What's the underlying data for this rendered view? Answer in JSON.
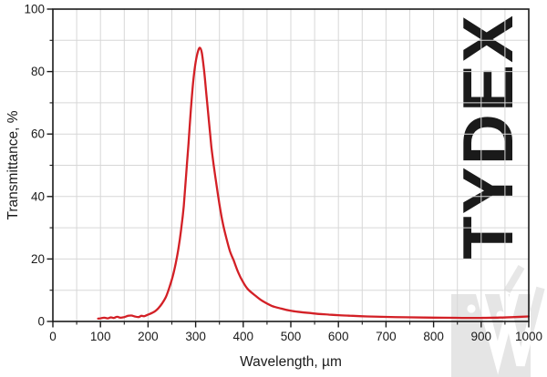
{
  "watermark": {
    "text": "TYDEX"
  },
  "colors": {
    "curve": "#d32026",
    "grid": "#d7d7d7",
    "axis": "#1a1a1a",
    "watermark": "#dcdcdc",
    "logo_block": "#e5e5e5",
    "logo_mark": "#ffffff",
    "logo_mark_faint": "#e7e7e7"
  },
  "chart_data": {
    "type": "line",
    "title": "",
    "xlabel": "Wavelength, µm",
    "ylabel": "Transmittance, %",
    "xlim": [
      0,
      1000
    ],
    "ylim": [
      0,
      100
    ],
    "grid": "on (minor grid every 50 µm horizontally, every 10 % vertically)",
    "legend": "none",
    "x_major_ticks": [
      0,
      100,
      200,
      300,
      400,
      500,
      600,
      700,
      800,
      900,
      1000
    ],
    "x_tick_labels": [
      "0",
      "100",
      "200",
      "300",
      "400",
      "500",
      "600",
      "700",
      "800",
      "900",
      "1000"
    ],
    "x_minor_step": 50,
    "y_major_ticks": [
      0,
      20,
      40,
      60,
      80,
      100
    ],
    "y_tick_labels": [
      "0",
      "20",
      "40",
      "60",
      "80",
      "100"
    ],
    "y_minor_step": 10,
    "series": [
      {
        "name": "transmittance",
        "peak": {
          "x": 309,
          "y": 88
        },
        "x": [
          95,
          100,
          108,
          115,
          122,
          128,
          135,
          142,
          150,
          158,
          165,
          172,
          180,
          186,
          192,
          200,
          208,
          215,
          222,
          230,
          238,
          245,
          252,
          258,
          264,
          270,
          275,
          280,
          285,
          290,
          295,
          300,
          305,
          309,
          313,
          318,
          323,
          328,
          333,
          338,
          344,
          350,
          357,
          364,
          372,
          380,
          390,
          400,
          410,
          425,
          440,
          460,
          480,
          500,
          520,
          540,
          560,
          580,
          600,
          630,
          660,
          700,
          740,
          780,
          820,
          860,
          900,
          940,
          970,
          1000
        ],
        "y": [
          0.9,
          1.0,
          1.2,
          1.0,
          1.3,
          1.1,
          1.5,
          1.2,
          1.4,
          1.8,
          1.9,
          1.6,
          1.4,
          1.8,
          1.7,
          2.2,
          2.7,
          3.3,
          4.3,
          5.9,
          8.0,
          11,
          14.5,
          18.5,
          23.5,
          30,
          37,
          47,
          57,
          68,
          77,
          83,
          86.5,
          87.6,
          86,
          80,
          72,
          64,
          56,
          50,
          43.5,
          37.5,
          31.5,
          27,
          22.5,
          19.5,
          15.5,
          12.5,
          10.3,
          8.3,
          6.6,
          5.0,
          4.1,
          3.4,
          3.0,
          2.7,
          2.4,
          2.2,
          2.0,
          1.8,
          1.6,
          1.45,
          1.35,
          1.25,
          1.2,
          1.15,
          1.15,
          1.25,
          1.4,
          1.6
        ]
      }
    ]
  }
}
